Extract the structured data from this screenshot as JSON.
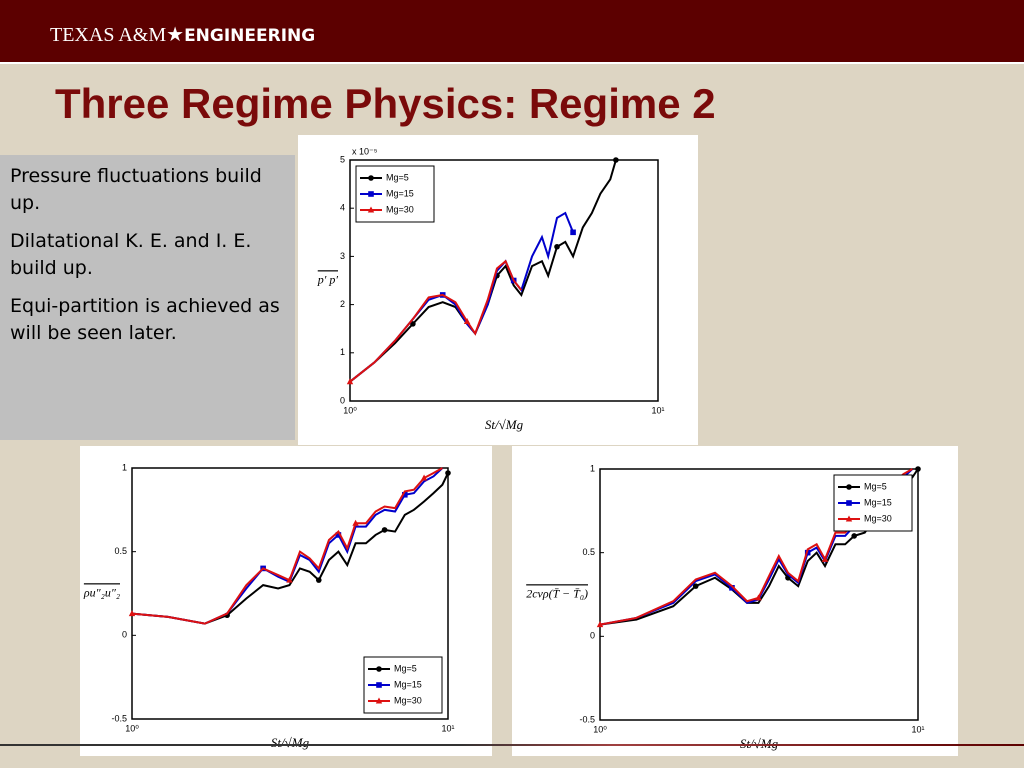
{
  "header": {
    "brand": "TEXAS A&M",
    "brand_bold": "ENGINEERING"
  },
  "title": "Three Regime Physics: Regime 2",
  "bullets": [
    "Pressure fluctuations build up.",
    "Dilatational K. E. and I. E. build up.",
    "Equi-partition is achieved as will be seen later."
  ],
  "chart_data": [
    {
      "type": "line",
      "xlabel": "St/√Mg",
      "ylabel": "p′ p′",
      "y_multiplier": "x 10⁻⁵",
      "log_x": true,
      "legend": "upper left",
      "xlim": [
        1,
        10
      ],
      "xticks": [
        {
          "value": 1,
          "label": "10⁰"
        },
        {
          "value": 10,
          "label": "10¹"
        }
      ],
      "ylim": [
        0,
        5
      ],
      "yticks": [
        0,
        1,
        2,
        3,
        4,
        5
      ],
      "x": [
        1,
        1.2,
        1.4,
        1.6,
        1.8,
        2.0,
        2.2,
        2.4,
        2.55,
        2.8,
        3.0,
        3.2,
        3.4,
        3.6,
        3.9,
        4.2,
        4.4,
        4.7,
        5.0,
        5.3,
        5.7,
        6.1,
        6.5,
        7.0,
        7.3
      ],
      "series": [
        {
          "name": "Mg=5",
          "color": "#000000",
          "marker": "circle",
          "values": [
            0.4,
            0.8,
            1.2,
            1.6,
            1.95,
            2.05,
            1.95,
            1.6,
            1.4,
            2.0,
            2.6,
            2.8,
            2.4,
            2.2,
            2.8,
            2.9,
            2.6,
            3.2,
            3.3,
            3.0,
            3.6,
            3.9,
            4.3,
            4.6,
            5.0
          ]
        },
        {
          "name": "Mg=15",
          "color": "#0000cc",
          "marker": "square",
          "values": [
            0.4,
            0.8,
            1.25,
            1.7,
            2.1,
            2.2,
            2.0,
            1.6,
            1.4,
            2.0,
            2.7,
            2.9,
            2.5,
            2.3,
            3.0,
            3.4,
            3.0,
            3.8,
            3.9,
            3.5,
            null,
            null,
            null,
            null,
            null
          ]
        },
        {
          "name": "Mg=30",
          "color": "#dd1111",
          "marker": "triangle",
          "values": [
            0.4,
            0.8,
            1.25,
            1.7,
            2.15,
            2.2,
            2.05,
            1.65,
            1.4,
            2.1,
            2.75,
            2.9,
            2.5,
            2.3,
            null,
            null,
            null,
            null,
            null,
            null,
            null,
            null,
            null,
            null,
            null
          ]
        }
      ]
    },
    {
      "type": "line",
      "xlabel": "St/√Mg",
      "ylabel": "ρu″₂u″₂",
      "log_x": true,
      "legend": "lower right",
      "xlim": [
        1,
        10
      ],
      "xticks": [
        {
          "value": 1,
          "label": "10⁰"
        },
        {
          "value": 10,
          "label": "10¹"
        }
      ],
      "ylim": [
        -0.5,
        1
      ],
      "yticks": [
        -0.5,
        0,
        0.5,
        1
      ],
      "x": [
        1,
        1.3,
        1.7,
        2.0,
        2.3,
        2.6,
        2.9,
        3.15,
        3.4,
        3.65,
        3.9,
        4.2,
        4.5,
        4.8,
        5.1,
        5.5,
        5.9,
        6.3,
        6.8,
        7.3,
        7.8,
        8.4,
        9.0,
        9.6,
        10
      ],
      "series": [
        {
          "name": "Mg=5",
          "color": "#000000",
          "marker": "circle",
          "values": [
            0.13,
            0.11,
            0.07,
            0.12,
            0.22,
            0.3,
            0.28,
            0.3,
            0.4,
            0.38,
            0.33,
            0.45,
            0.5,
            0.42,
            0.55,
            0.55,
            0.6,
            0.63,
            0.62,
            0.72,
            0.75,
            0.8,
            0.85,
            0.9,
            0.97
          ]
        },
        {
          "name": "Mg=15",
          "color": "#0000cc",
          "marker": "square",
          "values": [
            0.13,
            0.11,
            0.07,
            0.13,
            0.28,
            0.4,
            0.35,
            0.32,
            0.48,
            0.45,
            0.38,
            0.55,
            0.6,
            0.5,
            0.65,
            0.65,
            0.72,
            0.75,
            0.74,
            0.84,
            0.85,
            0.92,
            0.95,
            1.0,
            null
          ]
        },
        {
          "name": "Mg=30",
          "color": "#dd1111",
          "marker": "triangle",
          "values": [
            0.13,
            0.11,
            0.07,
            0.13,
            0.3,
            0.4,
            0.36,
            0.33,
            0.5,
            0.46,
            0.4,
            0.57,
            0.62,
            0.52,
            0.67,
            0.67,
            0.74,
            0.77,
            0.76,
            0.86,
            0.87,
            0.94,
            0.97,
            1.0,
            null
          ]
        }
      ]
    },
    {
      "type": "line",
      "xlabel": "St/√Mg",
      "ylabel": "2cvρ(T̄ − T̄₀)",
      "log_x": true,
      "legend": "upper right",
      "xlim": [
        1,
        10
      ],
      "xticks": [
        {
          "value": 1,
          "label": "10⁰"
        },
        {
          "value": 10,
          "label": "10¹"
        }
      ],
      "ylim": [
        -0.5,
        1
      ],
      "yticks": [
        -0.5,
        0,
        0.5,
        1
      ],
      "x": [
        1,
        1.3,
        1.7,
        2.0,
        2.3,
        2.6,
        2.9,
        3.15,
        3.4,
        3.65,
        3.9,
        4.2,
        4.5,
        4.8,
        5.1,
        5.5,
        5.9,
        6.3,
        6.8,
        7.3,
        7.8,
        8.4,
        9.0,
        9.6,
        10
      ],
      "series": [
        {
          "name": "Mg=5",
          "color": "#000000",
          "marker": "circle",
          "values": [
            0.07,
            0.1,
            0.18,
            0.3,
            0.35,
            0.28,
            0.2,
            0.2,
            0.3,
            0.42,
            0.35,
            0.3,
            0.45,
            0.5,
            0.42,
            0.55,
            0.55,
            0.6,
            0.62,
            0.7,
            0.78,
            0.85,
            0.9,
            0.95,
            1.0
          ]
        },
        {
          "name": "Mg=15",
          "color": "#0000cc",
          "marker": "square",
          "values": [
            0.07,
            0.11,
            0.2,
            0.33,
            0.37,
            0.29,
            0.2,
            0.22,
            0.34,
            0.46,
            0.37,
            0.32,
            0.5,
            0.53,
            0.45,
            0.6,
            0.6,
            0.66,
            0.67,
            0.75,
            0.82,
            0.9,
            0.95,
            1.0,
            null
          ]
        },
        {
          "name": "Mg=30",
          "color": "#dd1111",
          "marker": "triangle",
          "values": [
            0.07,
            0.11,
            0.21,
            0.34,
            0.38,
            0.3,
            0.21,
            0.23,
            0.36,
            0.48,
            0.38,
            0.33,
            0.52,
            0.55,
            0.46,
            0.62,
            0.62,
            0.68,
            0.69,
            0.78,
            0.85,
            0.92,
            0.97,
            1.0,
            null
          ]
        }
      ]
    }
  ]
}
